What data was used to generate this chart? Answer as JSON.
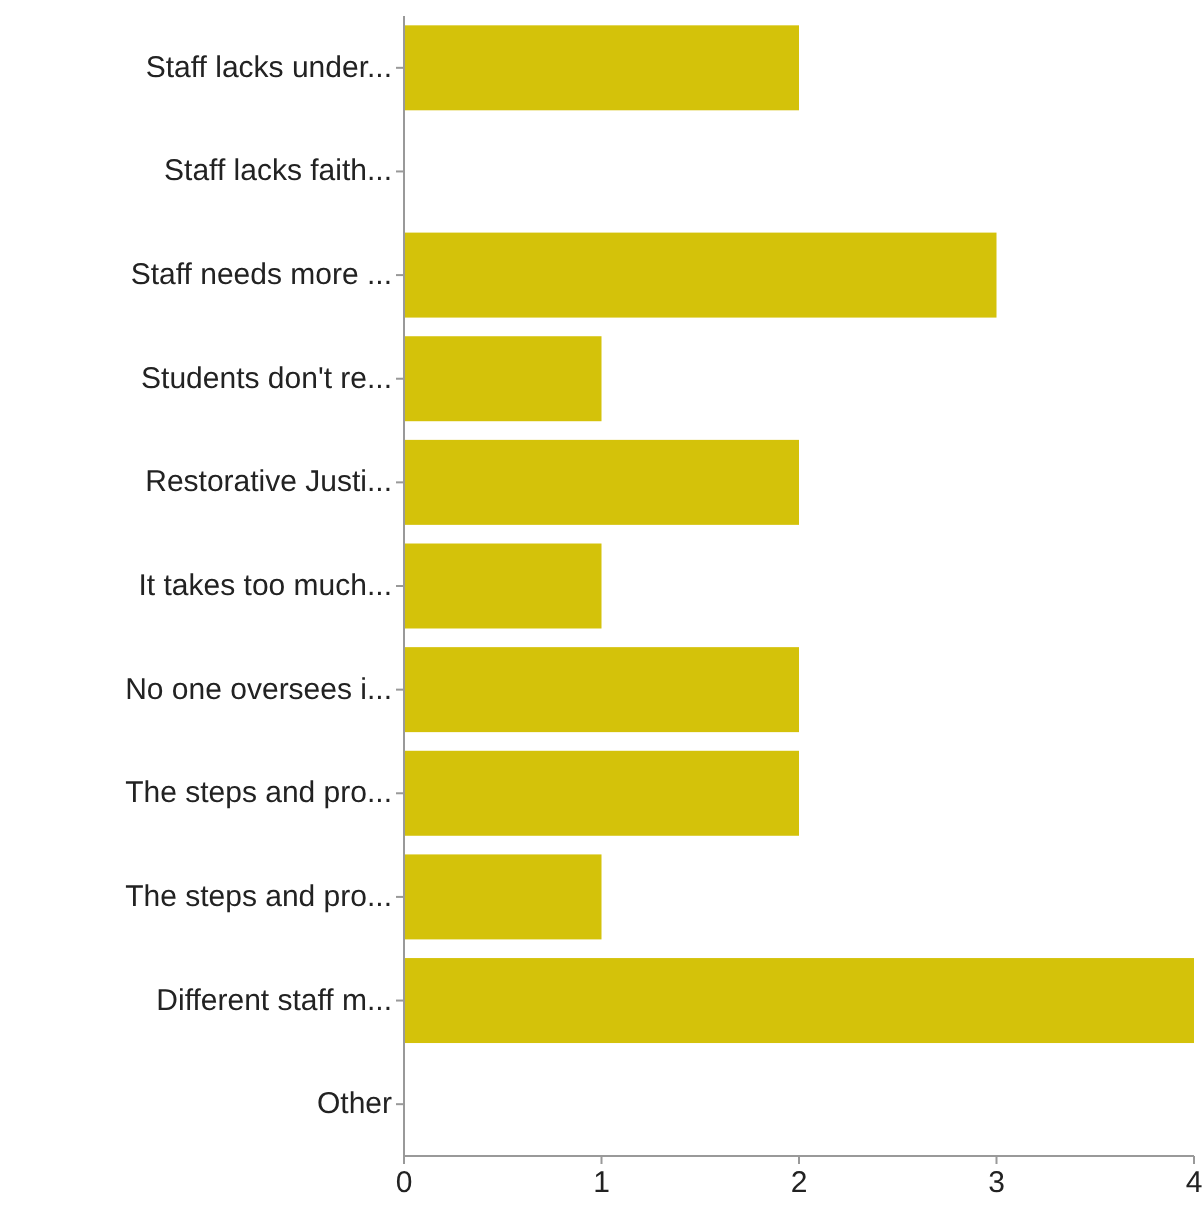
{
  "chart_data": {
    "type": "bar",
    "orientation": "horizontal",
    "categories": [
      "Staff lacks under...",
      "Staff lacks faith...",
      "Staff needs more ...",
      "Students don't re...",
      "Restorative Justi...",
      "It takes too much...",
      "No one oversees i...",
      "The steps and pro...",
      "The steps and pro...",
      "Different staff m...",
      "Other"
    ],
    "values": [
      2,
      0,
      3,
      1,
      2,
      1,
      2,
      2,
      1,
      4,
      0
    ],
    "color": "#d4c20a",
    "xlim": [
      0,
      4
    ],
    "xticks": [
      0,
      1,
      2,
      3,
      4
    ],
    "grid": false
  }
}
